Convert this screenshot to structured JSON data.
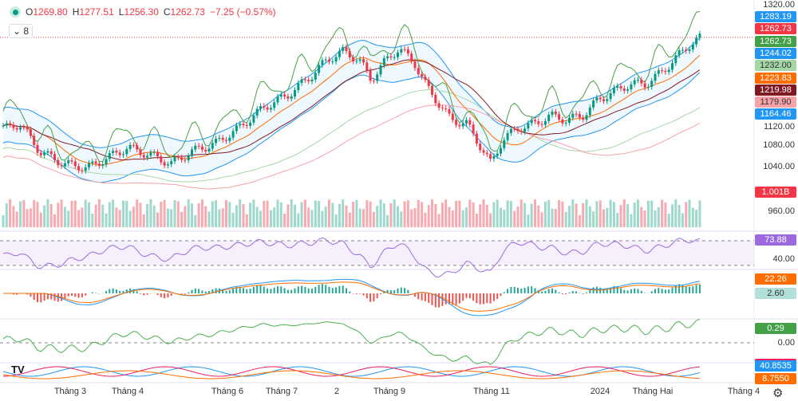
{
  "legend": {
    "o_label": "O",
    "open": "1269.80",
    "h_label": "H",
    "high": "1277.51",
    "l_label": "L",
    "low": "1256.30",
    "c_label": "C",
    "close": "1262.73",
    "change": "−7.25 (−0.57%)",
    "collapsed_count": "8"
  },
  "colors": {
    "up": "#089981",
    "down": "#f23645",
    "rsi": "#9c6ade",
    "macd": "#2196f3",
    "signal": "#ff6d00",
    "momentum": "#4caf50"
  },
  "price_labels": [
    {
      "text": "1283.19",
      "color": "#2196f3"
    },
    {
      "text": "1262.73",
      "color": "#f23645"
    },
    {
      "text": "1262.73",
      "color": "#43a047"
    },
    {
      "text": "1244.02",
      "color": "#2196f3"
    },
    {
      "text": "1232.00",
      "color": "#a5d6a7"
    },
    {
      "text": "1223.83",
      "color": "#ff6d00"
    },
    {
      "text": "1219.98",
      "color": "#801922"
    },
    {
      "text": "1179.90",
      "color": "#f7a1a8"
    },
    {
      "text": "1164.46",
      "color": "#2196f3"
    }
  ],
  "price_axis": [
    "1320.00",
    "1120.00",
    "1080.00",
    "1040.00",
    "960.00"
  ],
  "volume_label": "1.001B",
  "rsi": {
    "value": "73.88",
    "axis": "40.00"
  },
  "macd": {
    "macd_value": "22.26",
    "hist_value": "2.60"
  },
  "oscillator": {
    "value": "0.29",
    "axis": "0.00"
  },
  "dmi": {
    "value1": "40.8535",
    "value2": "8.7550"
  },
  "time_axis": [
    "Tháng 3",
    "Tháng 4",
    "Tháng 6",
    "Tháng 7",
    "2",
    "Tháng 9",
    "Tháng 11",
    "2024",
    "Tháng Hai",
    "Tháng 4"
  ],
  "chart_data": {
    "type": "candlestick",
    "ylim": [
      960,
      1320
    ],
    "x": [
      10,
      25,
      50,
      80,
      110,
      130,
      160,
      190,
      215,
      240,
      270,
      300,
      330,
      360,
      390,
      410,
      430,
      450,
      465,
      480,
      500,
      520,
      535,
      550,
      565,
      585,
      600,
      615,
      630,
      650,
      670,
      690,
      710,
      730,
      750,
      770,
      790,
      810,
      830,
      850,
      865,
      878
    ],
    "close": [
      1107,
      1114,
      1066,
      1045,
      1038,
      1052,
      1073,
      1059,
      1045,
      1066,
      1080,
      1107,
      1142,
      1163,
      1197,
      1225,
      1239,
      1225,
      1190,
      1218,
      1245,
      1218,
      1177,
      1149,
      1121,
      1114,
      1080,
      1045,
      1087,
      1107,
      1114,
      1128,
      1121,
      1128,
      1156,
      1170,
      1183,
      1183,
      1204,
      1232,
      1252,
      1263
    ]
  }
}
